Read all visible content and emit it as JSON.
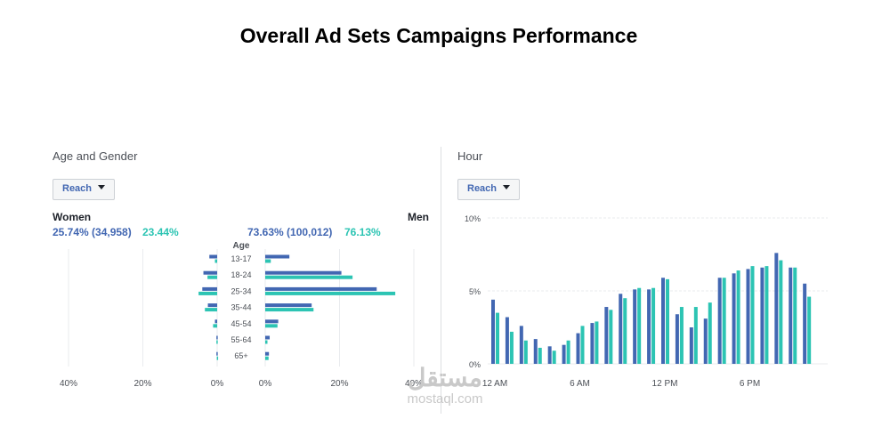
{
  "page_title": "Overall Ad Sets Campaigns Performance",
  "colors": {
    "women": "#4267b2",
    "men": "#2cc4b3",
    "grid": "#e9ebee",
    "text": "#4b4f56"
  },
  "age_gender": {
    "title": "Age and Gender",
    "dropdown": "Reach",
    "women_label": "Women",
    "men_label": "Men",
    "women_stat_reach": "25.74% (34,958)",
    "women_stat_teal": "23.44%",
    "men_stat_reach": "73.63% (100,012)",
    "men_stat_teal": "76.13%",
    "age_header": "Age"
  },
  "hour": {
    "title": "Hour",
    "dropdown": "Reach"
  },
  "chart_data": [
    {
      "type": "bar",
      "title": "Age and Gender",
      "orientation": "horizontal",
      "categories": [
        "13-17",
        "18-24",
        "25-34",
        "35-44",
        "45-54",
        "55-64",
        "65+"
      ],
      "series": [
        {
          "name": "Women",
          "values": [
            2.1,
            3.7,
            4.0,
            2.5,
            0.6,
            0.2,
            0.2
          ]
        },
        {
          "name": "Women",
          "values": [
            0.6,
            2.6,
            5.0,
            3.3,
            1.1,
            0.2,
            0.1
          ]
        },
        {
          "name": "Men",
          "values": [
            6.5,
            20.5,
            30.0,
            12.5,
            3.5,
            1.2,
            1.0
          ]
        },
        {
          "name": "Men",
          "values": [
            1.5,
            23.5,
            35.0,
            13.0,
            3.3,
            0.6,
            0.9
          ]
        }
      ],
      "x_ticks_left": [
        "40%",
        "20%",
        "0%"
      ],
      "x_ticks_right": [
        "0%",
        "20%",
        "40%"
      ],
      "xlim": [
        0,
        40
      ]
    },
    {
      "type": "bar",
      "title": "Hour",
      "categories": [
        "0",
        "1",
        "2",
        "3",
        "4",
        "5",
        "6",
        "7",
        "8",
        "9",
        "10",
        "11",
        "12",
        "13",
        "14",
        "15",
        "16",
        "17",
        "18",
        "19",
        "20",
        "21",
        "22",
        "23"
      ],
      "x_tick_labels": [
        "12 AM",
        "6 AM",
        "12 PM",
        "6 PM"
      ],
      "y_ticks": [
        "10%",
        "5%",
        "0%"
      ],
      "ylim": [
        0,
        10
      ],
      "series": [
        {
          "name": "Reach",
          "values": [
            4.4,
            3.2,
            2.6,
            1.7,
            1.2,
            1.3,
            2.1,
            2.8,
            3.9,
            4.8,
            5.1,
            5.1,
            5.9,
            3.4,
            2.5,
            3.1,
            5.9,
            6.2,
            6.5,
            6.6,
            7.6,
            6.6,
            5.5,
            0
          ]
        },
        {
          "name": "Reach",
          "values": [
            3.5,
            2.2,
            1.6,
            1.1,
            0.9,
            1.6,
            2.6,
            2.9,
            3.7,
            4.5,
            5.2,
            5.2,
            5.8,
            3.9,
            3.9,
            4.2,
            5.9,
            6.4,
            6.7,
            6.7,
            7.1,
            6.6,
            4.6,
            0
          ]
        }
      ]
    }
  ],
  "watermark": {
    "arabic": "مستقل",
    "latin": "mostaql.com"
  }
}
